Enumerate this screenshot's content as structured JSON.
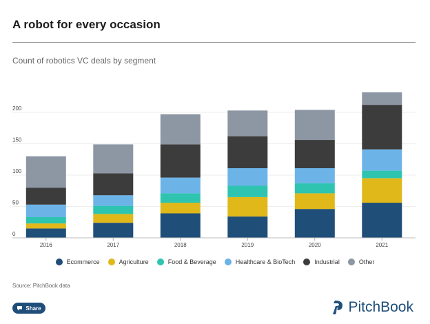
{
  "page": {
    "title": "A robot for every occasion",
    "source": "Source: PitchBook data",
    "share_label": "Share",
    "logo_text": "PitchBook"
  },
  "colors": {
    "Ecommerce": "#1f4e79",
    "Agriculture": "#e0b81a",
    "Food & Beverage": "#2ec4b0",
    "Healthcare & BioTech": "#6cb4e8",
    "Industrial": "#3c3c3c",
    "Other": "#8d96a3",
    "brand": "#1f4e7a"
  },
  "chart_data": {
    "type": "bar",
    "stacked": true,
    "title": "Count of robotics VC deals by segment",
    "xlabel": "",
    "ylabel": "",
    "ylim": [
      0,
      230
    ],
    "yticks": [
      0,
      50,
      100,
      150,
      200
    ],
    "categories": [
      "2016",
      "2017",
      "2018",
      "2019",
      "2020",
      "2021"
    ],
    "series": [
      {
        "name": "Ecommerce",
        "values": [
          15,
          24,
          39,
          34,
          46,
          56
        ]
      },
      {
        "name": "Agriculture",
        "values": [
          8,
          14,
          17,
          31,
          25,
          39
        ]
      },
      {
        "name": "Food & Beverage",
        "values": [
          10,
          13,
          15,
          18,
          16,
          12
        ]
      },
      {
        "name": "Healthcare & BioTech",
        "values": [
          20,
          17,
          25,
          28,
          24,
          34
        ]
      },
      {
        "name": "Industrial",
        "values": [
          27,
          35,
          53,
          51,
          45,
          71
        ]
      },
      {
        "name": "Other",
        "values": [
          50,
          46,
          48,
          41,
          48,
          20
        ]
      }
    ],
    "legend": "bottom"
  }
}
